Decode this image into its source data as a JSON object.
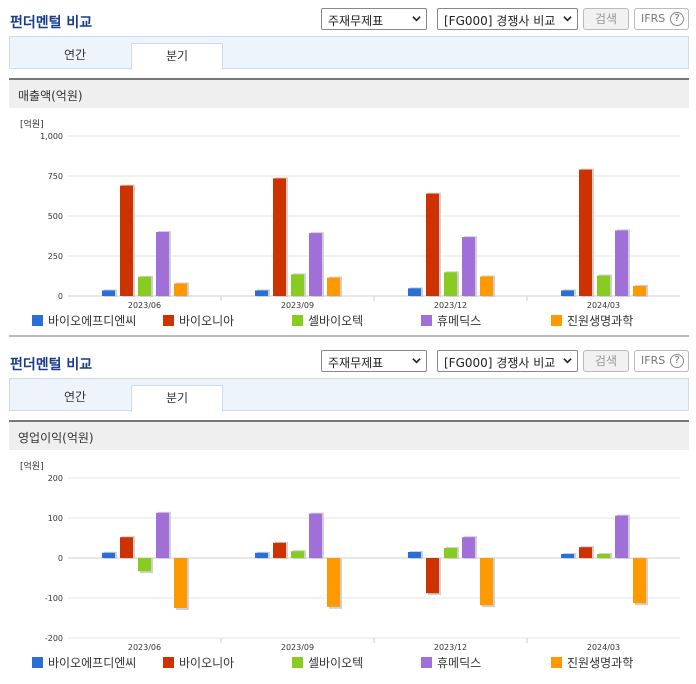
{
  "panels": [
    {
      "title": "펀더멘털 비교",
      "statement_select": "주재무제표",
      "compare_select": "[FG000] 경쟁사 비교",
      "search_label": "검색",
      "ifrs_label": "IFRS",
      "help_label": "?",
      "tabs": [
        {
          "label": "연간",
          "active": false
        },
        {
          "label": "분기",
          "active": true
        }
      ],
      "section_title": "매출액(억원)",
      "unit_label": "[억원]",
      "chart_data": {
        "type": "bar",
        "categories": [
          "2023/06",
          "2023/09",
          "2023/12",
          "2024/03"
        ],
        "ylim": [
          0,
          1000
        ],
        "yticks": [
          0,
          250,
          500,
          750,
          1000
        ],
        "ytick_labels": [
          "0",
          "250",
          "500",
          "750",
          "1,000"
        ],
        "series": [
          {
            "name": "바이오에프디엔씨",
            "color": "#2a6fd6",
            "values": [
              35,
              35,
              48,
              35
            ]
          },
          {
            "name": "바이오니아",
            "color": "#cc3300",
            "values": [
              690,
              735,
              640,
              790
            ]
          },
          {
            "name": "셀바이오텍",
            "color": "#88cc22",
            "values": [
              120,
              135,
              148,
              128
            ]
          },
          {
            "name": "휴메딕스",
            "color": "#a070d8",
            "values": [
              400,
              393,
              368,
              410
            ]
          },
          {
            "name": "진원생명과학",
            "color": "#ff9900",
            "values": [
              78,
              115,
              122,
              63
            ]
          }
        ]
      }
    },
    {
      "title": "펀더멘털 비교",
      "statement_select": "주재무제표",
      "compare_select": "[FG000] 경쟁사 비교",
      "search_label": "검색",
      "ifrs_label": "IFRS",
      "help_label": "?",
      "tabs": [
        {
          "label": "연간",
          "active": false
        },
        {
          "label": "분기",
          "active": true
        }
      ],
      "section_title": "영업이익(억원)",
      "unit_label": "[억원]",
      "chart_data": {
        "type": "bar",
        "categories": [
          "2023/06",
          "2023/09",
          "2023/12",
          "2024/03"
        ],
        "ylim": [
          -200,
          200
        ],
        "yticks": [
          -200,
          -100,
          0,
          100,
          200
        ],
        "ytick_labels": [
          "-200",
          "-100",
          "0",
          "100",
          "200"
        ],
        "series": [
          {
            "name": "바이오에프디엔씨",
            "color": "#2a6fd6",
            "values": [
              13,
              13,
              15,
              10
            ]
          },
          {
            "name": "바이오니아",
            "color": "#cc3300",
            "values": [
              52,
              38,
              -88,
              27
            ]
          },
          {
            "name": "셀바이오텍",
            "color": "#88cc22",
            "values": [
              -33,
              17,
              25,
              10
            ]
          },
          {
            "name": "휴메딕스",
            "color": "#a070d8",
            "values": [
              113,
              111,
              52,
              106
            ]
          },
          {
            "name": "진원생명과학",
            "color": "#ff9900",
            "values": [
              -125,
              -122,
              -118,
              -113
            ]
          }
        ]
      }
    }
  ]
}
